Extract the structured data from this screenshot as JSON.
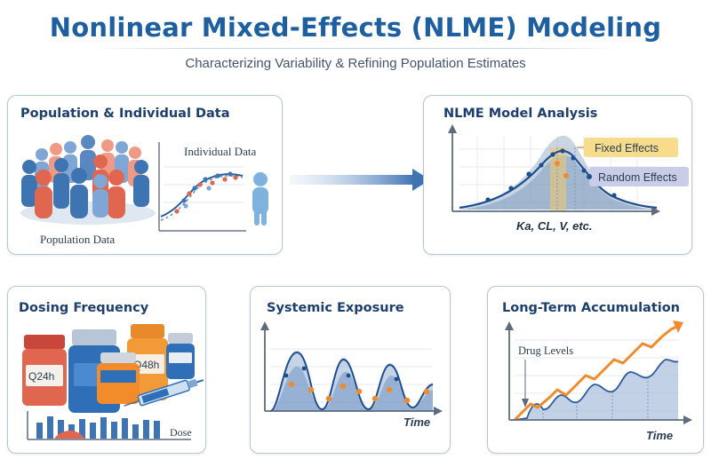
{
  "header": {
    "title": "Nonlinear Mixed-Effects (NLME) Modeling",
    "subtitle": "Characterizing Variability & Refining Population Estimates"
  },
  "panels": {
    "population": {
      "title": "Population & Individual Data",
      "individual_label": "Individual Data",
      "population_label": "Population Data"
    },
    "analysis": {
      "title": "NLME Model Analysis",
      "fixed_label": "Fixed Effects",
      "random_label": "Random Effects",
      "params_label": "Ka, CL, V, etc."
    },
    "dosing": {
      "title": "Dosing Frequency",
      "bottle_label_1": "Q24h",
      "bottle_label_2": "Q48h",
      "dose_label": "Dose"
    },
    "exposure": {
      "title": "Systemic Exposure",
      "time_label": "Time"
    },
    "accumulation": {
      "title": "Long-Term Accumulation",
      "drug_levels_label": "Drug Levels",
      "time_label": "Time"
    }
  },
  "colors": {
    "title_blue": "#1d5fa0",
    "person_blue": "#3f74b3",
    "person_red": "#e0664f",
    "accent_orange": "#f08a2a",
    "highlight_yellow": "#f7dc8c",
    "highlight_lavender": "#c9cde8"
  }
}
